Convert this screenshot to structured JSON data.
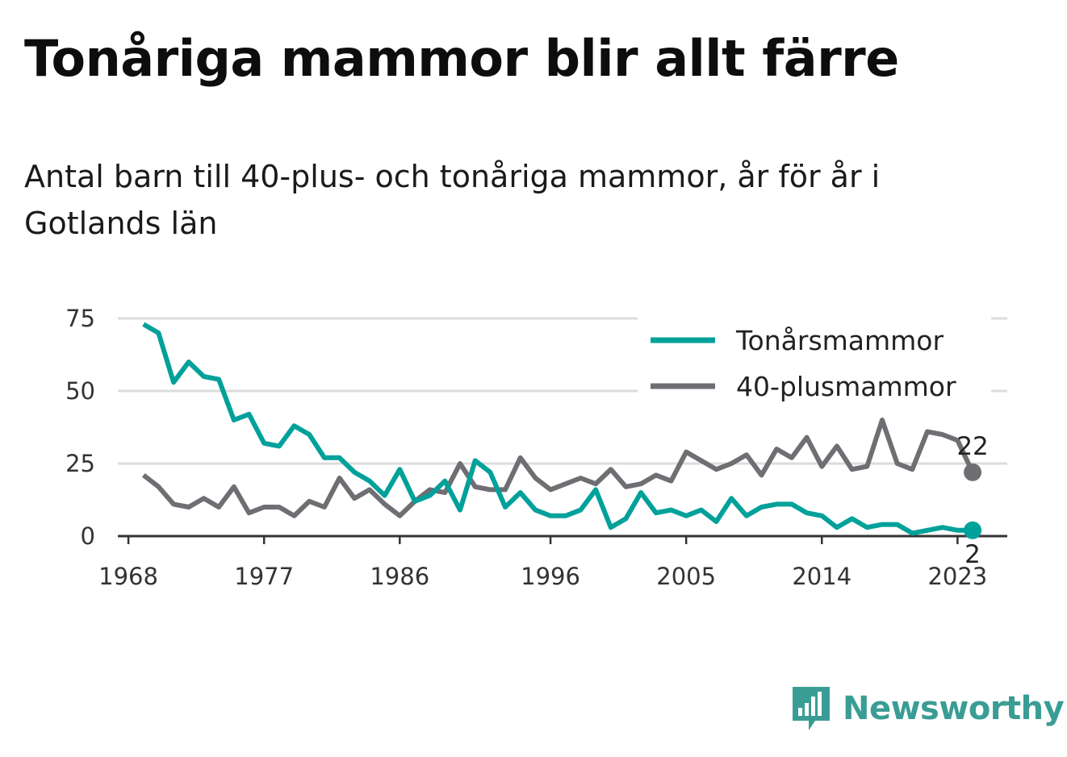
{
  "title": "Tonåriga mammor blir allt färre",
  "subtitle": "Antal barn till 40-plus- och tonåriga mammor, år för år i Gotlands län",
  "brand": "Newsworthy",
  "chart_data": {
    "type": "line",
    "x": [
      1969,
      1970,
      1971,
      1972,
      1973,
      1974,
      1975,
      1976,
      1977,
      1978,
      1979,
      1980,
      1981,
      1982,
      1983,
      1984,
      1985,
      1986,
      1987,
      1988,
      1989,
      1990,
      1991,
      1992,
      1993,
      1994,
      1995,
      1996,
      1997,
      1998,
      1999,
      2000,
      2001,
      2002,
      2003,
      2004,
      2005,
      2006,
      2007,
      2008,
      2009,
      2010,
      2011,
      2012,
      2013,
      2014,
      2015,
      2016,
      2017,
      2018,
      2019,
      2020,
      2021,
      2022,
      2023,
      2024
    ],
    "x_ticks": [
      "1968",
      "1977",
      "1986",
      "1996",
      "2005",
      "2014",
      "2023"
    ],
    "x_tick_values": [
      1968,
      1977,
      1986,
      1996,
      2005,
      2014,
      2023
    ],
    "y_ticks": [
      "0",
      "25",
      "50",
      "75"
    ],
    "y_tick_values": [
      0,
      25,
      50,
      75
    ],
    "ylim": [
      0,
      75
    ],
    "xlim": [
      1967.3,
      2026.3
    ],
    "grid": true,
    "legend_position": "top-right",
    "series": [
      {
        "name": "Tonårsmammor",
        "color": "#00a19a",
        "values": [
          73,
          70,
          53,
          60,
          55,
          54,
          40,
          42,
          32,
          31,
          38,
          35,
          27,
          27,
          22,
          19,
          14,
          23,
          12,
          14,
          19,
          9,
          26,
          22,
          10,
          15,
          9,
          7,
          7,
          9,
          16,
          3,
          6,
          15,
          8,
          9,
          7,
          9,
          5,
          13,
          7,
          10,
          11,
          11,
          8,
          7,
          3,
          6,
          3,
          4,
          4,
          1,
          2,
          3,
          2,
          2
        ],
        "end_label": "2"
      },
      {
        "name": "40-plusmammor",
        "color": "#6e6e73",
        "values": [
          21,
          17,
          11,
          10,
          13,
          10,
          17,
          8,
          10,
          10,
          7,
          12,
          10,
          20,
          13,
          16,
          11,
          7,
          12,
          16,
          15,
          25,
          17,
          16,
          16,
          27,
          20,
          16,
          18,
          20,
          18,
          23,
          17,
          18,
          21,
          19,
          29,
          26,
          23,
          25,
          28,
          21,
          30,
          27,
          34,
          24,
          31,
          23,
          24,
          40,
          25,
          23,
          36,
          35,
          33,
          22
        ],
        "end_label": "22"
      }
    ]
  }
}
